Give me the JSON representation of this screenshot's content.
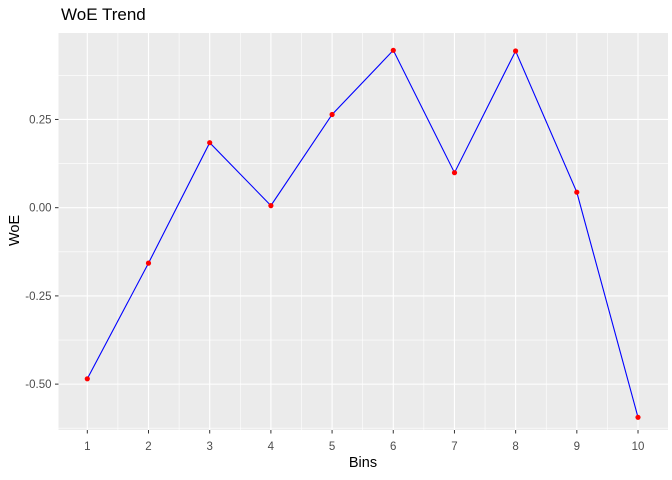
{
  "title": "WoE Trend",
  "chart_data": {
    "type": "line",
    "title": "WoE Trend",
    "xlabel": "Bins",
    "ylabel": "WoE",
    "x": [
      1,
      2,
      3,
      4,
      5,
      6,
      7,
      8,
      9,
      10
    ],
    "values": [
      -0.485,
      -0.157,
      0.184,
      0.006,
      0.264,
      0.446,
      0.099,
      0.444,
      0.044,
      -0.594
    ],
    "x_ticks": [
      1,
      2,
      3,
      4,
      5,
      6,
      7,
      8,
      9,
      10
    ],
    "x_tick_labels": [
      "1",
      "2",
      "3",
      "4",
      "5",
      "6",
      "7",
      "8",
      "9",
      "10"
    ],
    "x_minor": [
      1.5,
      2.5,
      3.5,
      4.5,
      5.5,
      6.5,
      7.5,
      8.5,
      9.5
    ],
    "y_ticks": [
      0.25,
      0.0,
      -0.25,
      -0.5
    ],
    "y_tick_labels": [
      "0.25",
      "0.00",
      "-0.25",
      "-0.50"
    ],
    "y_minor": [
      0.375,
      0.125,
      -0.125,
      -0.375,
      -0.625
    ],
    "xlim": [
      0.529,
      10.49
    ],
    "ylim": [
      -0.63,
      0.495
    ],
    "grid": true,
    "legend": false,
    "colors": {
      "line": "#0000FF",
      "point": "#FF0000",
      "panel_bg": "#EBEBEB",
      "grid": "#FFFFFF",
      "axis_text": "#4D4D4D",
      "tick": "#333333",
      "title_text": "#000000"
    }
  }
}
